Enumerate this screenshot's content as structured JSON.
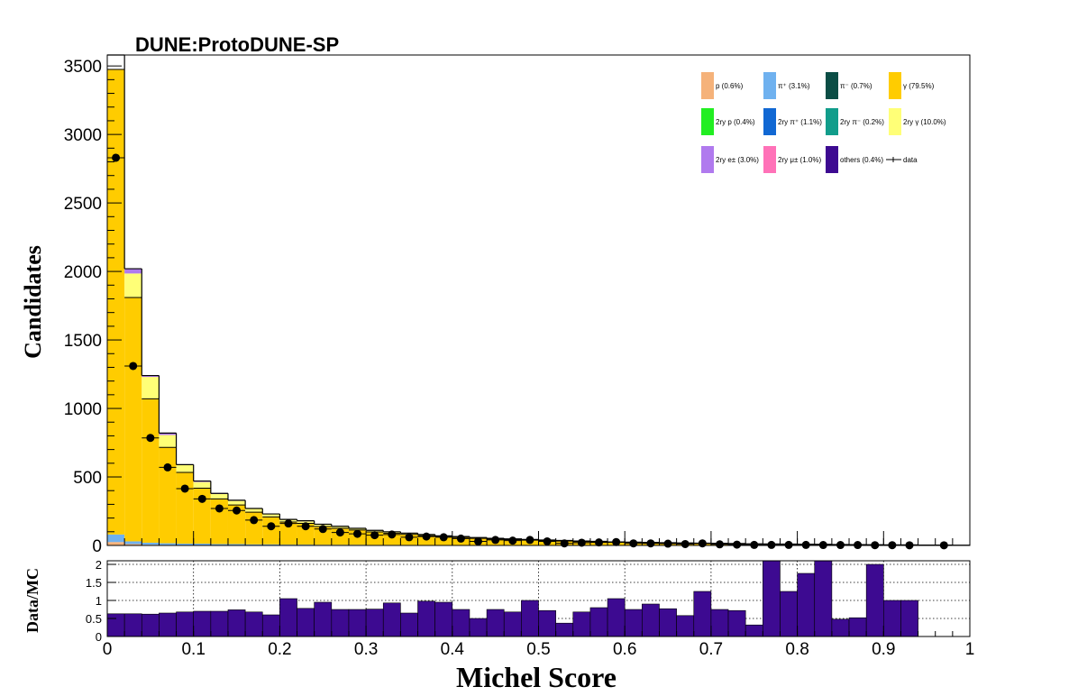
{
  "title": "DUNE:ProtoDUNE-SP",
  "colors": {
    "p": "#f5b27a",
    "pip": "#6fb1ef",
    "pim": "#0b4d45",
    "gamma": "#ffcc00",
    "p2": "#22ee22",
    "pip2": "#1168d3",
    "pim2": "#119d8b",
    "gamma2": "#ffff77",
    "e2": "#b07aee",
    "mu2": "#ff72b8",
    "others": "#3d0a91",
    "data": "#000000",
    "ratio": "#3d0a91"
  },
  "legend": {
    "placement": "top-right",
    "entries": [
      {
        "key": "p",
        "label": "p (0.6%)"
      },
      {
        "key": "pip",
        "label": "π⁺ (3.1%)"
      },
      {
        "key": "pim",
        "label": "π⁻ (0.7%)"
      },
      {
        "key": "gamma",
        "label": "γ (79.5%)"
      },
      {
        "key": "p2",
        "label": "2ry p (0.4%)"
      },
      {
        "key": "pip2",
        "label": "2ry π⁺ (1.1%)"
      },
      {
        "key": "pim2",
        "label": "2ry π⁻ (0.2%)"
      },
      {
        "key": "gamma2",
        "label": "2ry γ (10.0%)"
      },
      {
        "key": "e2",
        "label": "2ry e± (3.0%)"
      },
      {
        "key": "mu2",
        "label": "2ry μ± (1.0%)"
      },
      {
        "key": "others",
        "label": "others (0.4%)"
      },
      {
        "key": "data",
        "label": "data"
      }
    ]
  },
  "chart_data": [
    {
      "type": "bar",
      "stacked": true,
      "ylabel": "Candidates",
      "xlim": [
        0,
        1
      ],
      "ylim": [
        0,
        3580
      ],
      "bins": 50,
      "x_ticks": [
        0,
        0.1,
        0.2,
        0.3,
        0.4,
        0.5,
        0.6,
        0.7,
        0.8,
        0.9,
        1
      ],
      "y_ticks": [
        0,
        500,
        1000,
        1500,
        2000,
        2500,
        3000,
        3500
      ],
      "mc_total": [
        3580,
        2020,
        1240,
        820,
        590,
        470,
        380,
        330,
        270,
        230,
        190,
        180,
        155,
        140,
        125,
        110,
        100,
        90,
        80,
        70,
        65,
        58,
        52,
        48,
        44,
        40,
        36,
        32,
        30,
        26,
        24,
        22,
        20,
        18,
        17,
        16,
        14,
        12,
        11,
        10,
        9,
        8,
        7,
        6,
        5,
        4,
        4,
        3,
        3,
        2
      ],
      "series": [
        {
          "name": "gamma",
          "values": [
            3395,
            1780,
            1050,
            700,
            520,
            405,
            330,
            285,
            235,
            200,
            165,
            155,
            133,
            120,
            108,
            95,
            86,
            77,
            68,
            60,
            55,
            49,
            44,
            40,
            37,
            34,
            30,
            27,
            25,
            22,
            20,
            18,
            17,
            15,
            14,
            13,
            11,
            10,
            9,
            8,
            7,
            6,
            6,
            5,
            4,
            3,
            3,
            2,
            2,
            2
          ]
        },
        {
          "name": "gamma2",
          "values": [
            0,
            175,
            160,
            90,
            55,
            45,
            35,
            30,
            25,
            20,
            17,
            15,
            13,
            12,
            10,
            9,
            8,
            7,
            7,
            6,
            5,
            5,
            4,
            4,
            4,
            3,
            3,
            3,
            3,
            2,
            2,
            2,
            2,
            2,
            2,
            2,
            2,
            1,
            1,
            1,
            1,
            1,
            1,
            1,
            1,
            1,
            1,
            1,
            1,
            0
          ]
        },
        {
          "name": "e2",
          "values": [
            0,
            35,
            20,
            10,
            5,
            5,
            5,
            5,
            4,
            4,
            3,
            3,
            3,
            3,
            2,
            2,
            2,
            2,
            2,
            1,
            1,
            1,
            1,
            1,
            1,
            1,
            1,
            1,
            1,
            1,
            1,
            1,
            1,
            1,
            1,
            1,
            1,
            1,
            1,
            1,
            1,
            1,
            0,
            0,
            0,
            0,
            0,
            0,
            0,
            0
          ]
        },
        {
          "name": "pip",
          "values": [
            55,
            20,
            15,
            12,
            10,
            10,
            8,
            8,
            6,
            6,
            5,
            5,
            4,
            4,
            4,
            3,
            3,
            3,
            2,
            2,
            2,
            2,
            2,
            2,
            1,
            1,
            1,
            1,
            1,
            1,
            1,
            1,
            0,
            0,
            0,
            0,
            0,
            0,
            0,
            0,
            0,
            0,
            0,
            0,
            0,
            0,
            0,
            0,
            0,
            0
          ]
        },
        {
          "name": "p",
          "values": [
            25,
            10,
            5,
            4,
            3,
            3,
            2,
            2,
            2,
            2,
            1,
            1,
            1,
            1,
            1,
            1,
            1,
            1,
            1,
            1,
            1,
            1,
            1,
            1,
            1,
            1,
            1,
            0,
            0,
            0,
            0,
            0,
            0,
            0,
            0,
            0,
            0,
            0,
            0,
            0,
            0,
            0,
            0,
            0,
            0,
            0,
            0,
            0,
            0,
            0
          ]
        }
      ],
      "data_points": [
        {
          "x": 0.01,
          "y": 2830
        },
        {
          "x": 0.03,
          "y": 1310
        },
        {
          "x": 0.05,
          "y": 785
        },
        {
          "x": 0.07,
          "y": 570
        },
        {
          "x": 0.09,
          "y": 415
        },
        {
          "x": 0.11,
          "y": 340
        },
        {
          "x": 0.13,
          "y": 270
        },
        {
          "x": 0.15,
          "y": 255
        },
        {
          "x": 0.17,
          "y": 185
        },
        {
          "x": 0.19,
          "y": 140
        },
        {
          "x": 0.21,
          "y": 160
        },
        {
          "x": 0.23,
          "y": 140
        },
        {
          "x": 0.25,
          "y": 120
        },
        {
          "x": 0.27,
          "y": 95
        },
        {
          "x": 0.29,
          "y": 85
        },
        {
          "x": 0.31,
          "y": 75
        },
        {
          "x": 0.33,
          "y": 80
        },
        {
          "x": 0.35,
          "y": 60
        },
        {
          "x": 0.37,
          "y": 65
        },
        {
          "x": 0.39,
          "y": 60
        },
        {
          "x": 0.41,
          "y": 50
        },
        {
          "x": 0.43,
          "y": 30
        },
        {
          "x": 0.45,
          "y": 40
        },
        {
          "x": 0.47,
          "y": 35
        },
        {
          "x": 0.49,
          "y": 40
        },
        {
          "x": 0.51,
          "y": 30
        },
        {
          "x": 0.53,
          "y": 15
        },
        {
          "x": 0.55,
          "y": 20
        },
        {
          "x": 0.57,
          "y": 22
        },
        {
          "x": 0.59,
          "y": 25
        },
        {
          "x": 0.61,
          "y": 15
        },
        {
          "x": 0.63,
          "y": 15
        },
        {
          "x": 0.65,
          "y": 13
        },
        {
          "x": 0.67,
          "y": 10
        },
        {
          "x": 0.69,
          "y": 15
        },
        {
          "x": 0.71,
          "y": 8
        },
        {
          "x": 0.73,
          "y": 6
        },
        {
          "x": 0.75,
          "y": 4
        },
        {
          "x": 0.77,
          "y": 4
        },
        {
          "x": 0.79,
          "y": 4
        },
        {
          "x": 0.81,
          "y": 4
        },
        {
          "x": 0.83,
          "y": 3
        },
        {
          "x": 0.85,
          "y": 3
        },
        {
          "x": 0.87,
          "y": 3
        },
        {
          "x": 0.89,
          "y": 2
        },
        {
          "x": 0.91,
          "y": 2
        },
        {
          "x": 0.93,
          "y": 1
        },
        {
          "x": 0.97,
          "y": 1
        }
      ]
    },
    {
      "type": "bar",
      "xlabel": "Michel Score",
      "ylabel": "Data/MC",
      "xlim": [
        0,
        1
      ],
      "ylim": [
        0,
        2.1
      ],
      "grid": true,
      "x_ticks": [
        0,
        0.1,
        0.2,
        0.3,
        0.4,
        0.5,
        0.6,
        0.7,
        0.8,
        0.9,
        1
      ],
      "y_ticks": [
        0,
        0.5,
        1,
        1.5,
        2
      ],
      "values": [
        0.63,
        0.63,
        0.62,
        0.65,
        0.68,
        0.7,
        0.7,
        0.74,
        0.68,
        0.6,
        1.05,
        0.78,
        0.95,
        0.75,
        0.75,
        0.76,
        0.93,
        0.65,
        0.98,
        0.95,
        0.75,
        0.5,
        0.75,
        0.68,
        1.0,
        0.72,
        0.37,
        0.68,
        0.8,
        1.05,
        0.75,
        0.9,
        0.77,
        0.58,
        1.25,
        0.75,
        0.72,
        0.32,
        2.1,
        1.25,
        1.75,
        2.1,
        0.48,
        0.52,
        2.0,
        1.0,
        1.0,
        0,
        0,
        0
      ]
    }
  ]
}
